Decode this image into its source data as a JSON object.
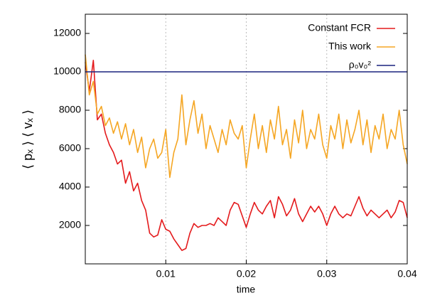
{
  "chart_data": {
    "type": "line",
    "xlabel": "time",
    "ylabel": "⟨ pₓ ⟩ ⟨ vₓ ⟩",
    "xlim": [
      0,
      0.04
    ],
    "xticks": [
      0.01,
      0.02,
      0.03,
      0.04
    ],
    "ylim": [
      0,
      13000
    ],
    "yticks": [
      2000,
      4000,
      6000,
      8000,
      10000,
      12000
    ],
    "grid": "x",
    "legend": "top-right",
    "series": [
      {
        "name": "Constant FCR",
        "color": "#e41a1c",
        "x": [
          0,
          0.0005,
          0.001,
          0.0015,
          0.002,
          0.0025,
          0.003,
          0.0035,
          0.004,
          0.0045,
          0.005,
          0.0055,
          0.006,
          0.0065,
          0.007,
          0.0075,
          0.008,
          0.0085,
          0.009,
          0.0095,
          0.01,
          0.0105,
          0.011,
          0.0115,
          0.012,
          0.0125,
          0.013,
          0.0135,
          0.014,
          0.0145,
          0.015,
          0.0155,
          0.016,
          0.0165,
          0.017,
          0.0175,
          0.018,
          0.0185,
          0.019,
          0.0195,
          0.02,
          0.0205,
          0.021,
          0.0215,
          0.022,
          0.0225,
          0.023,
          0.0235,
          0.024,
          0.0245,
          0.025,
          0.0255,
          0.026,
          0.0265,
          0.027,
          0.0275,
          0.028,
          0.0285,
          0.029,
          0.0295,
          0.03,
          0.0305,
          0.031,
          0.0315,
          0.032,
          0.0325,
          0.033,
          0.0335,
          0.034,
          0.0345,
          0.035,
          0.0355,
          0.036,
          0.0365,
          0.037,
          0.0375,
          0.038,
          0.0385,
          0.039,
          0.0395,
          0.04
        ],
        "values": [
          10500,
          9000,
          10600,
          7500,
          7800,
          6800,
          6200,
          5800,
          5200,
          5400,
          4200,
          4800,
          3800,
          4200,
          3300,
          2800,
          1600,
          1400,
          1500,
          2300,
          1800,
          1700,
          1300,
          1000,
          700,
          800,
          1600,
          2100,
          1900,
          2000,
          2000,
          2100,
          2000,
          2400,
          2200,
          2000,
          2800,
          3200,
          3100,
          2500,
          1900,
          2600,
          3200,
          2800,
          2600,
          3000,
          3300,
          2400,
          3500,
          3100,
          2500,
          2800,
          3400,
          2600,
          2200,
          2600,
          3000,
          2700,
          3000,
          2600,
          2000,
          2600,
          3000,
          2600,
          2400,
          2600,
          2500,
          3000,
          3500,
          2900,
          2500,
          2800,
          2600,
          2400,
          2600,
          2800,
          2400,
          2700,
          3300,
          3200,
          2400
        ]
      },
      {
        "name": "This work",
        "color": "#f5a623",
        "x": [
          0,
          0.0005,
          0.001,
          0.0015,
          0.002,
          0.0025,
          0.003,
          0.0035,
          0.004,
          0.0045,
          0.005,
          0.0055,
          0.006,
          0.0065,
          0.007,
          0.0075,
          0.008,
          0.0085,
          0.009,
          0.0095,
          0.01,
          0.0105,
          0.011,
          0.0115,
          0.012,
          0.0125,
          0.013,
          0.0135,
          0.014,
          0.0145,
          0.015,
          0.0155,
          0.016,
          0.0165,
          0.017,
          0.0175,
          0.018,
          0.0185,
          0.019,
          0.0195,
          0.02,
          0.0205,
          0.021,
          0.0215,
          0.022,
          0.0225,
          0.023,
          0.0235,
          0.024,
          0.0245,
          0.025,
          0.0255,
          0.026,
          0.0265,
          0.027,
          0.0275,
          0.028,
          0.0285,
          0.029,
          0.0295,
          0.03,
          0.0305,
          0.031,
          0.0315,
          0.032,
          0.0325,
          0.033,
          0.0335,
          0.034,
          0.0345,
          0.035,
          0.0355,
          0.036,
          0.0365,
          0.037,
          0.0375,
          0.038,
          0.0385,
          0.039,
          0.0395,
          0.04
        ],
        "values": [
          10900,
          8800,
          9500,
          7800,
          8200,
          7200,
          7600,
          6800,
          7400,
          6500,
          7300,
          6200,
          7000,
          5800,
          6600,
          5000,
          6000,
          6500,
          5500,
          5800,
          7000,
          4500,
          5800,
          6500,
          8800,
          6200,
          7500,
          8500,
          6800,
          7800,
          6000,
          7200,
          6500,
          5800,
          7000,
          6200,
          7500,
          6800,
          6500,
          7200,
          5000,
          6500,
          7800,
          6000,
          7200,
          5800,
          7500,
          6500,
          8200,
          6200,
          7000,
          5500,
          7500,
          6300,
          8000,
          6000,
          7000,
          6500,
          7800,
          6200,
          5500,
          7200,
          6500,
          7800,
          6000,
          7500,
          6300,
          7000,
          8000,
          6200,
          7500,
          5800,
          7200,
          6500,
          7800,
          6000,
          7000,
          6500,
          8000,
          6200,
          5200
        ]
      },
      {
        "name": "ρ₀v₀²",
        "color": "#1a237e",
        "x": [
          0,
          0.04
        ],
        "values": [
          10000,
          10000
        ]
      }
    ]
  }
}
